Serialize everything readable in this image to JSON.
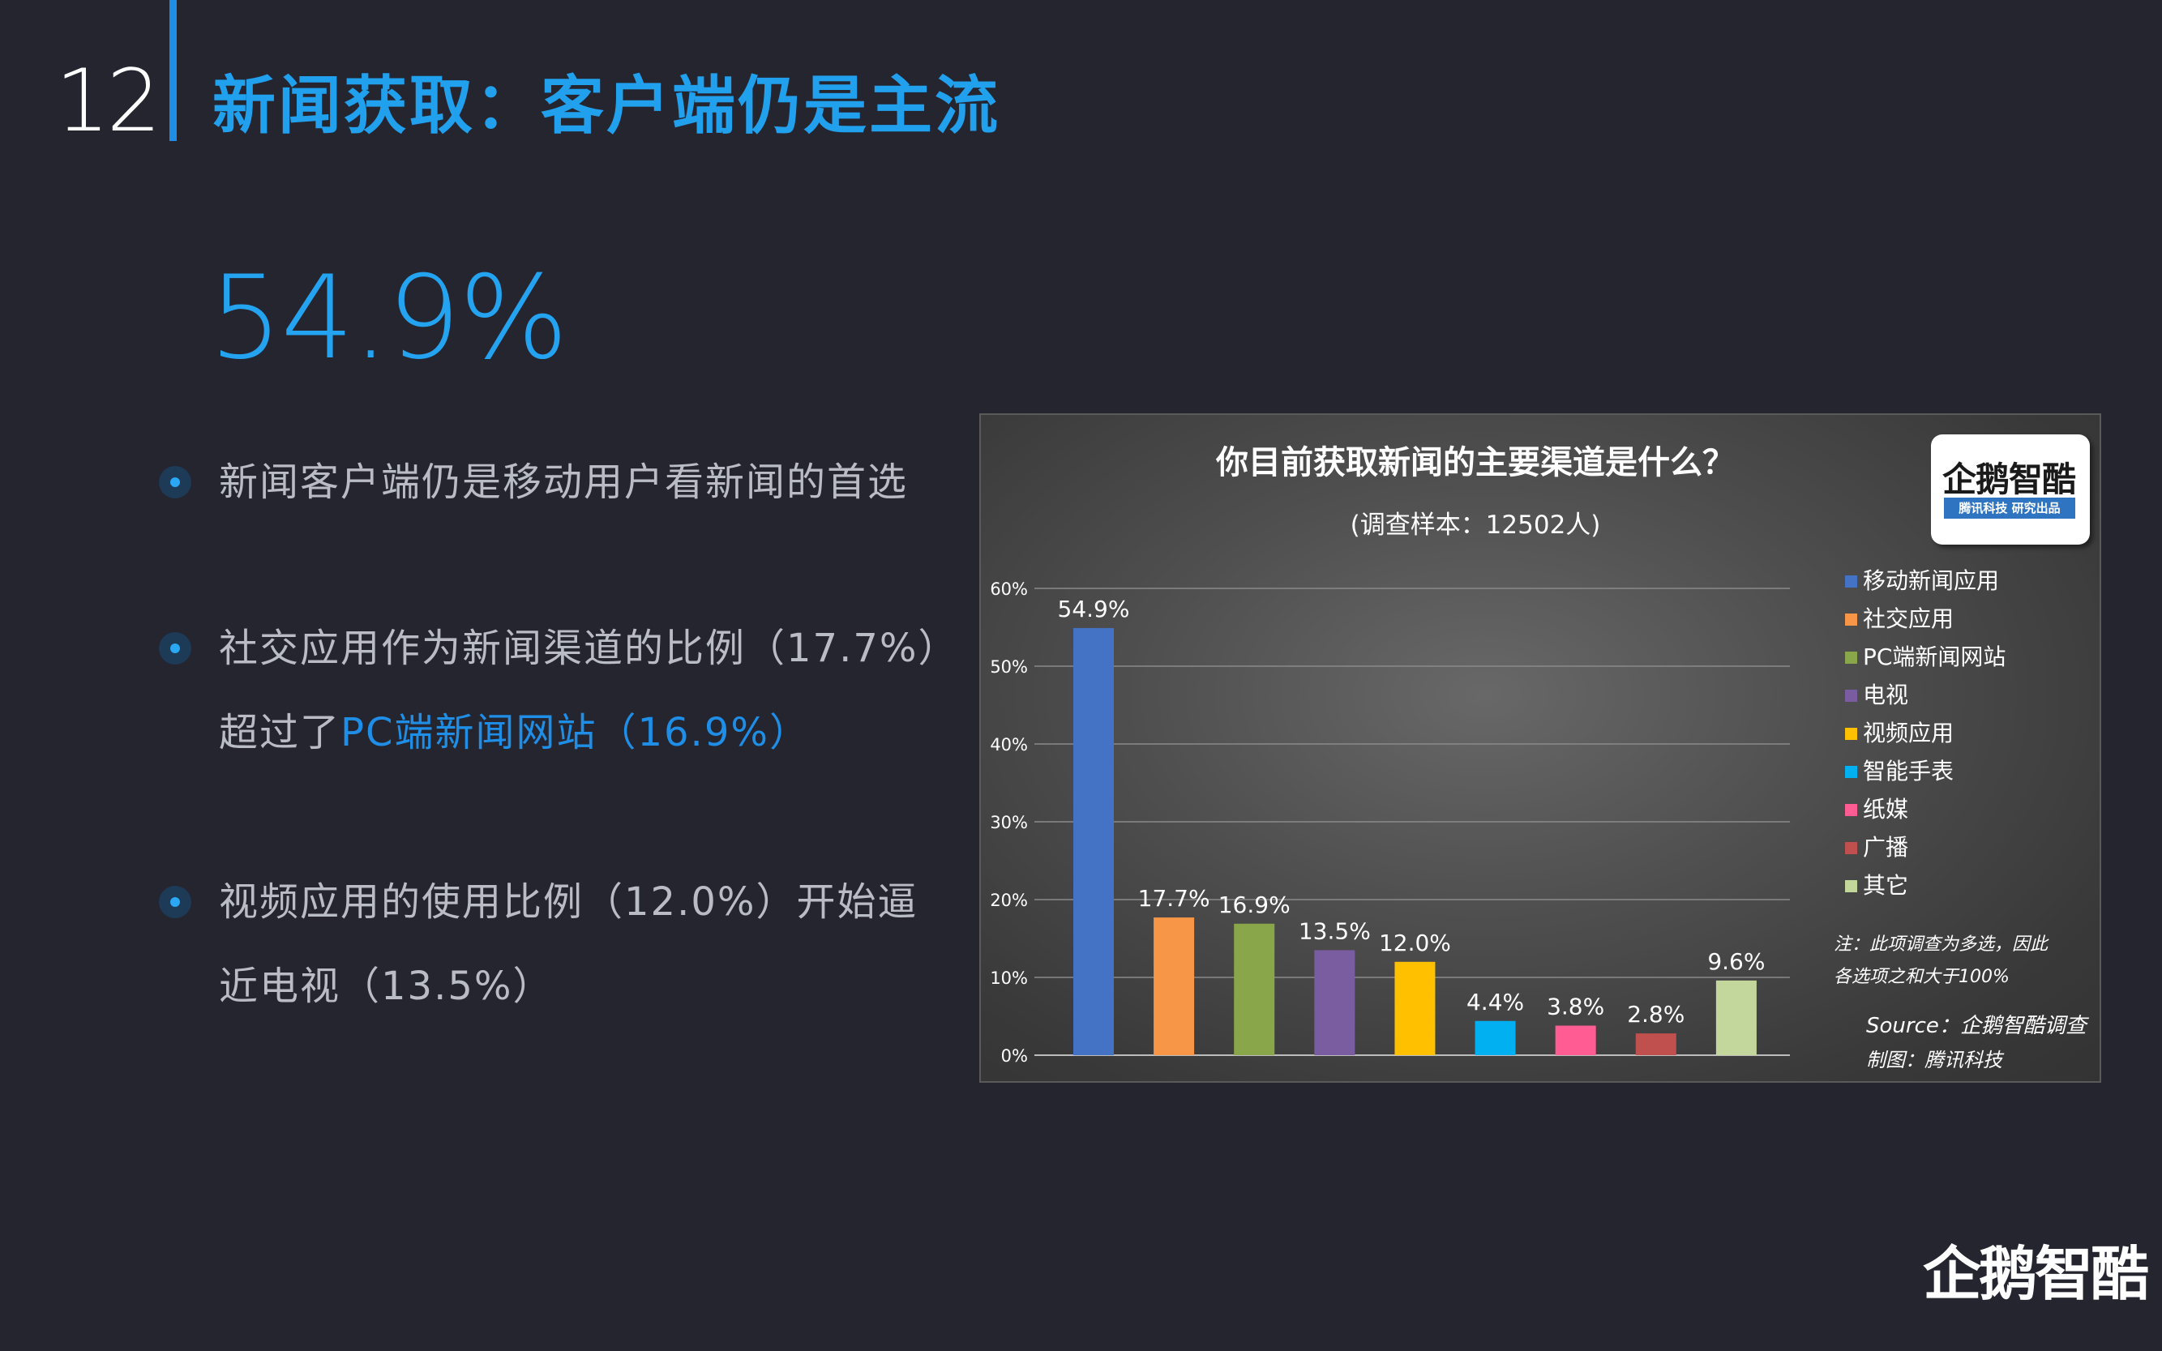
{
  "page": {
    "number": "12",
    "title": "新闻获取：客户端仍是主流",
    "stat": "54.9%"
  },
  "bullets": [
    {
      "lines": [
        "新闻客户端仍是移动用户看新闻的首选"
      ]
    },
    {
      "line1": "社交应用作为新闻渠道的比例（17.7%）",
      "line2_prefix": "超过了",
      "line2_highlight": "PC端新闻网站（16.9%）"
    },
    {
      "lines": [
        "视频应用的使用比例（12.0%）开始逼",
        "近电视（13.5%）"
      ]
    }
  ],
  "colors": {
    "background": "#252530",
    "accent": "#21a0ee",
    "bullet_text": "#b9bcc4"
  },
  "chart_data": {
    "type": "bar",
    "title": "你目前获取新闻的主要渠道是什么？",
    "subtitle": "(调查样本：12502人)",
    "categories": [
      "移动新闻应用",
      "社交应用",
      "PC端新闻网站",
      "电视",
      "视频应用",
      "智能手表",
      "纸媒",
      "广播",
      "其它"
    ],
    "values": [
      54.9,
      17.7,
      16.9,
      13.5,
      12.0,
      4.4,
      3.8,
      2.8,
      9.6
    ],
    "value_labels": [
      "54.9%",
      "17.7%",
      "16.9%",
      "13.5%",
      "12.0%",
      "4.4%",
      "3.8%",
      "2.8%",
      "9.6%"
    ],
    "colors": [
      "#4472c4",
      "#f79646",
      "#8aa64a",
      "#7a5ca0",
      "#ffc000",
      "#00b0f0",
      "#ff5c93",
      "#c0504d",
      "#c3d69b"
    ],
    "ylim": [
      0,
      60
    ],
    "yticks": [
      "0%",
      "10%",
      "20%",
      "30%",
      "40%",
      "50%",
      "60%"
    ],
    "grid": true,
    "legend": "right",
    "note_lines": [
      "注：此项调查为多选，因此",
      "各选项之和大于100%"
    ],
    "source": "Source：企鹅智酷调查",
    "credit": "制图：腾讯科技",
    "logo_text": "企鹅智酷",
    "logo_tag": "腾讯科技 研究出品"
  },
  "footer": {
    "logo": "企鹅智酷"
  }
}
